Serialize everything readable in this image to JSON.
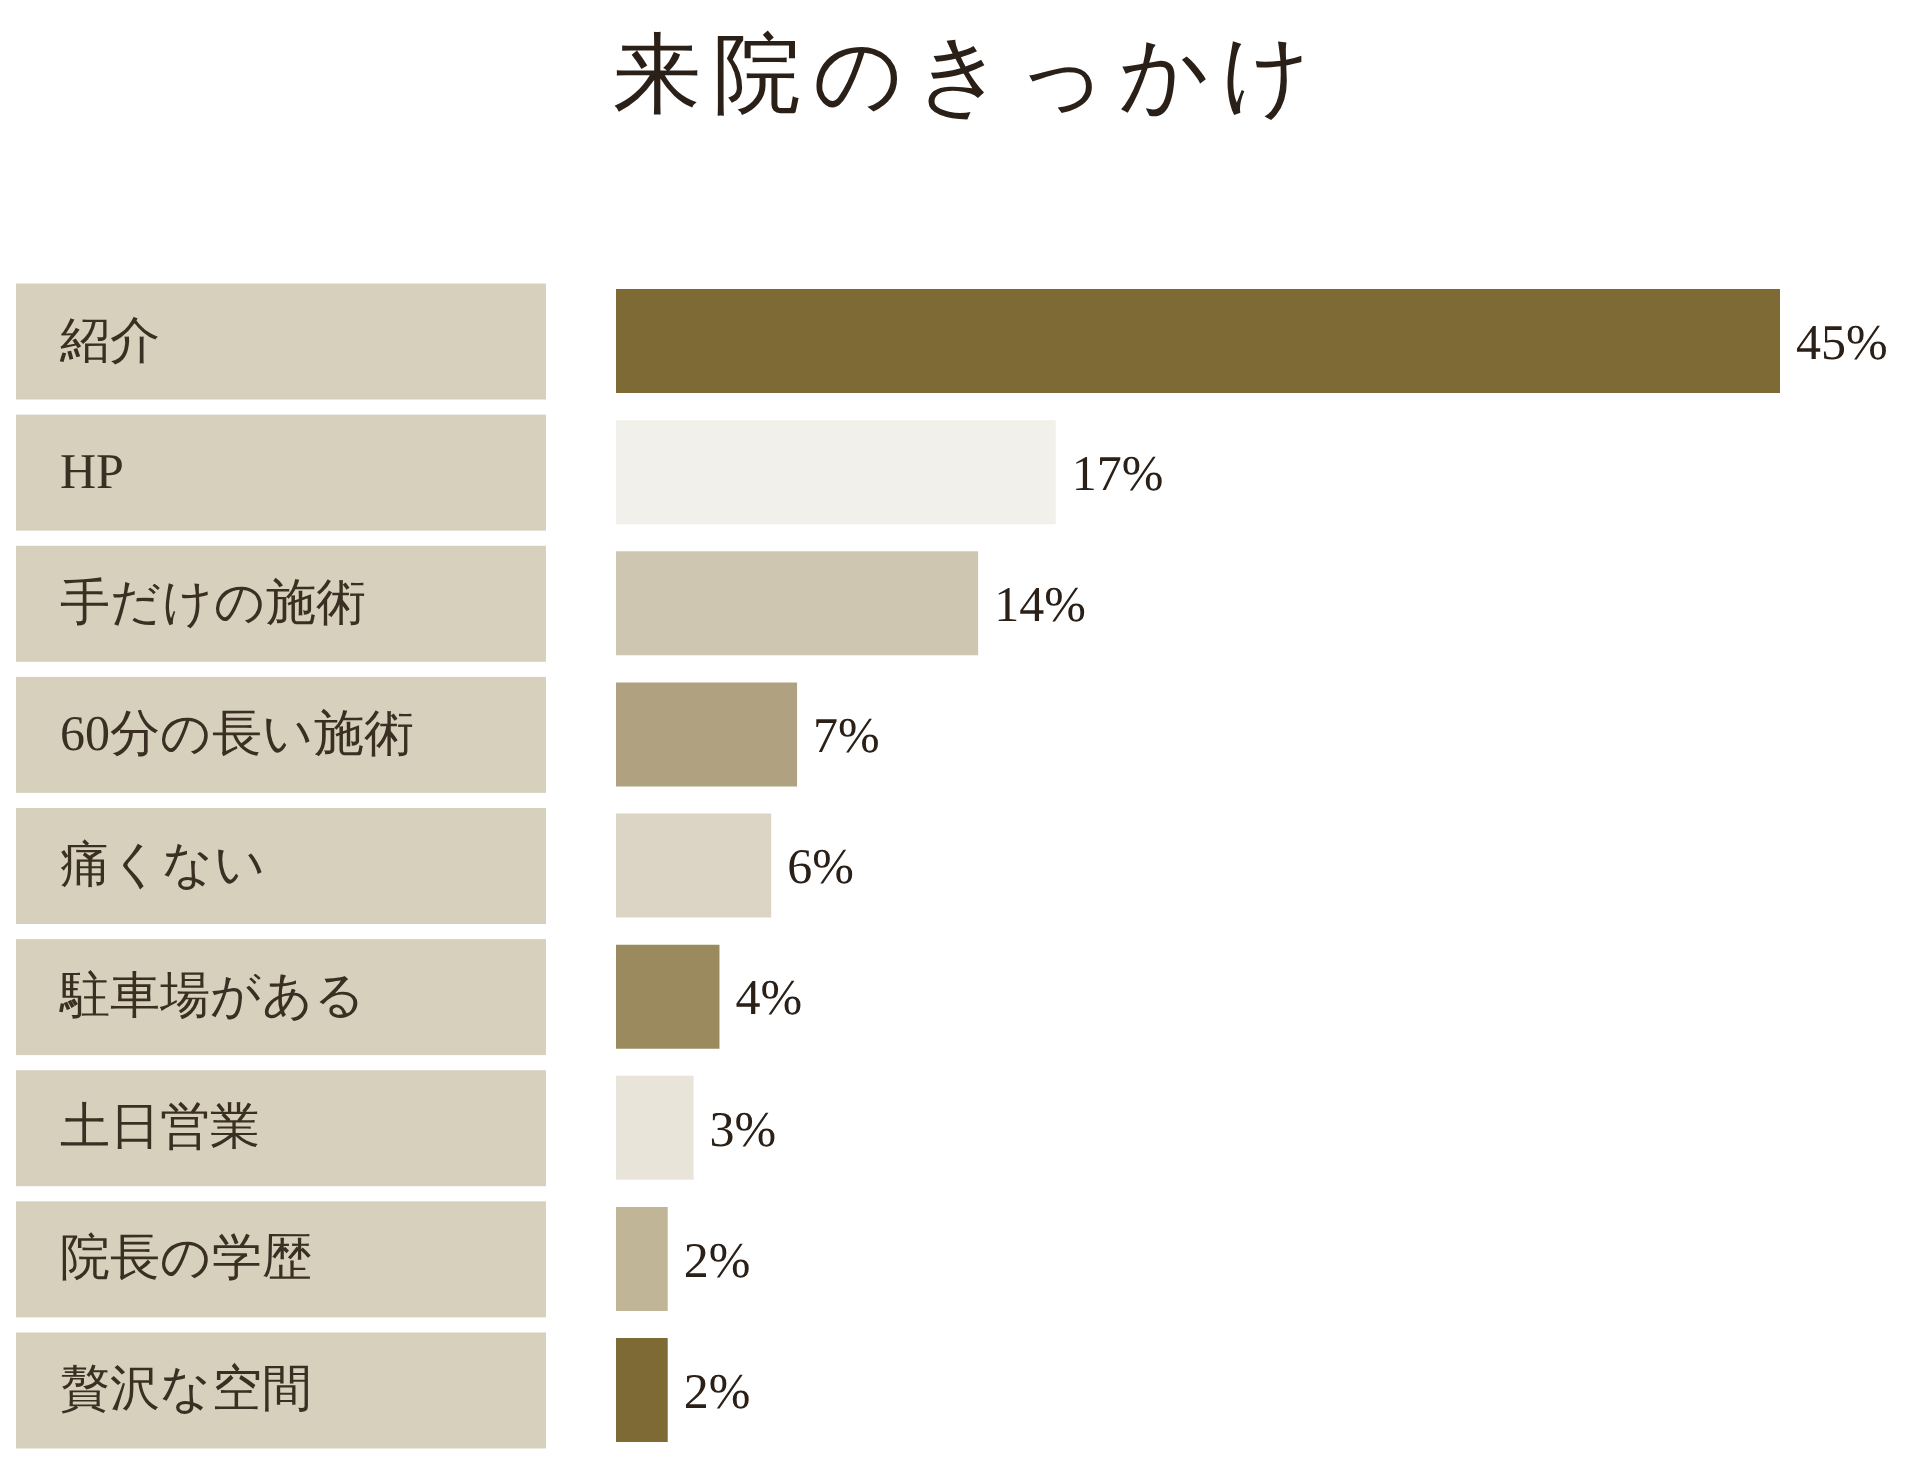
{
  "chart_data": {
    "type": "bar",
    "orientation": "horizontal",
    "title": "来院のきっかけ",
    "categories": [
      "紹介",
      "HP",
      "手だけの施術",
      "60分の長い施術",
      "痛くない",
      "駐車場がある",
      "土日営業",
      "院長の学歴",
      "贅沢な空間"
    ],
    "values": [
      45,
      17,
      14,
      7,
      6,
      4,
      3,
      2,
      2
    ],
    "value_labels": [
      "45%",
      "17%",
      "14%",
      "7%",
      "6%",
      "4%",
      "3%",
      "2%",
      "2%"
    ],
    "colors": [
      "#7d6a35",
      "#f2f0ea",
      "#cfc6b1",
      "#b0a281",
      "#dcd5c6",
      "#9a8a5e",
      "#e8e4da",
      "#c0b597",
      "#7d6a35"
    ],
    "grid": false,
    "legend": false
  }
}
